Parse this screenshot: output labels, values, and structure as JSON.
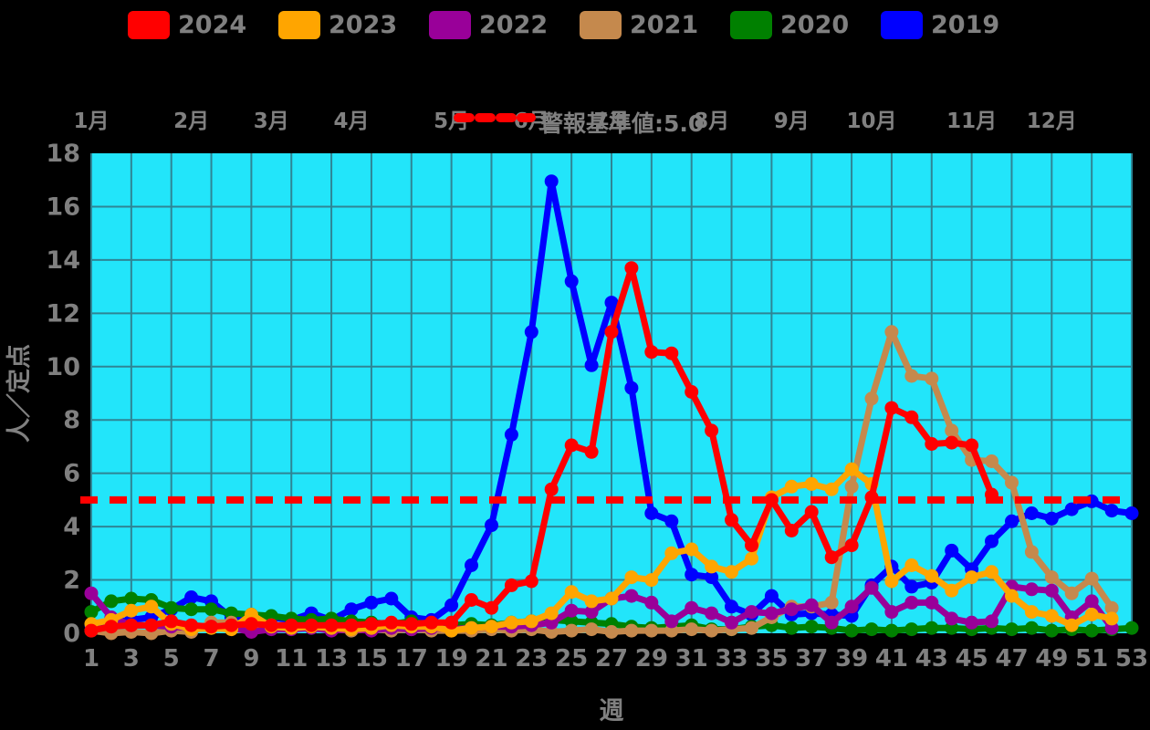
{
  "legend": {
    "items": [
      {
        "label": "2024",
        "color": "#ff0000"
      },
      {
        "label": "2023",
        "color": "#ffa500"
      },
      {
        "label": "2022",
        "color": "#990099"
      },
      {
        "label": "2021",
        "color": "#c5894d"
      },
      {
        "label": "2020",
        "color": "#008000"
      },
      {
        "label": "2019",
        "color": "#0000ff"
      }
    ]
  },
  "threshold": {
    "label": "警報基準値:5.0",
    "value": 5.0,
    "color": "#ff0000",
    "style": "dashed"
  },
  "chart_data": {
    "type": "line",
    "title": "",
    "xlabel": "週",
    "ylabel": "人／定点",
    "xlim": [
      1,
      53
    ],
    "ylim": [
      0,
      18
    ],
    "grid": true,
    "legend_position": "top",
    "plot_bg": "#22e5fa",
    "grid_color": "#2e8595",
    "tick_color": "#808080",
    "x_ticks": [
      1,
      3,
      5,
      7,
      9,
      11,
      13,
      15,
      17,
      19,
      21,
      23,
      25,
      27,
      29,
      31,
      33,
      35,
      37,
      39,
      41,
      43,
      45,
      47,
      49,
      51,
      53
    ],
    "y_ticks": [
      0,
      2,
      4,
      6,
      8,
      10,
      12,
      14,
      16,
      18
    ],
    "top_axis_month_labels": [
      {
        "label": "1月",
        "week": 1
      },
      {
        "label": "2月",
        "week": 6
      },
      {
        "label": "3月",
        "week": 10
      },
      {
        "label": "4月",
        "week": 14
      },
      {
        "label": "5月",
        "week": 19
      },
      {
        "label": "6月",
        "week": 23
      },
      {
        "label": "7月",
        "week": 27
      },
      {
        "label": "8月",
        "week": 32
      },
      {
        "label": "9月",
        "week": 36
      },
      {
        "label": "10月",
        "week": 40
      },
      {
        "label": "11月",
        "week": 45
      },
      {
        "label": "12月",
        "week": 49
      }
    ],
    "x_weeks": [
      1,
      2,
      3,
      4,
      5,
      6,
      7,
      8,
      9,
      10,
      11,
      12,
      13,
      14,
      15,
      16,
      17,
      18,
      19,
      20,
      21,
      22,
      23,
      24,
      25,
      26,
      27,
      28,
      29,
      30,
      31,
      32,
      33,
      34,
      35,
      36,
      37,
      38,
      39,
      40,
      41,
      42,
      43,
      44,
      45,
      46,
      47,
      48,
      49,
      50,
      51,
      52,
      53
    ],
    "threshold_line": {
      "value": 5.0,
      "color": "#ff0000",
      "style": "dashed"
    },
    "series": [
      {
        "name": "2024",
        "color": "#ff0000",
        "values": [
          0.1,
          0.25,
          0.3,
          0.3,
          0.45,
          0.3,
          0.25,
          0.3,
          0.35,
          0.3,
          0.3,
          0.3,
          0.3,
          0.3,
          0.35,
          0.4,
          0.35,
          0.4,
          0.4,
          1.25,
          0.95,
          1.8,
          1.95,
          5.4,
          7.05,
          6.8,
          11.3,
          13.7,
          10.55,
          10.5,
          9.05,
          7.6,
          4.25,
          3.3,
          5.0,
          3.85,
          4.55,
          2.85,
          3.3,
          5.1,
          8.45,
          8.1,
          7.1,
          7.15,
          7.05,
          5.2,
          null,
          null,
          null,
          null,
          null,
          null,
          null
        ]
      },
      {
        "name": "2023",
        "color": "#ffa500",
        "values": [
          0.35,
          0.5,
          0.85,
          1.0,
          0.35,
          0.15,
          0.2,
          0.15,
          0.7,
          0.25,
          0.2,
          0.25,
          0.2,
          0.15,
          0.2,
          0.3,
          0.25,
          0.25,
          0.1,
          0.2,
          0.25,
          0.4,
          0.45,
          0.75,
          1.55,
          1.2,
          1.3,
          2.1,
          2.0,
          3.0,
          3.15,
          2.5,
          2.3,
          2.8,
          5.1,
          5.5,
          5.6,
          5.4,
          6.15,
          5.6,
          1.95,
          2.55,
          2.15,
          1.6,
          2.1,
          2.3,
          1.4,
          0.8,
          0.65,
          0.3,
          0.7,
          0.55,
          null
        ]
      },
      {
        "name": "2022",
        "color": "#990099",
        "values": [
          1.5,
          0.6,
          0.3,
          0.3,
          0.25,
          0.2,
          0.25,
          0.2,
          0.05,
          0.15,
          0.15,
          0.2,
          0.1,
          0.15,
          0.1,
          0.2,
          0.15,
          0.2,
          0.15,
          0.2,
          0.25,
          0.25,
          0.3,
          0.4,
          0.85,
          0.8,
          1.3,
          1.4,
          1.15,
          0.45,
          0.95,
          0.75,
          0.4,
          0.8,
          0.75,
          0.9,
          1.05,
          0.4,
          1.0,
          1.7,
          0.8,
          1.15,
          1.15,
          0.55,
          0.4,
          0.45,
          1.75,
          1.65,
          1.6,
          0.6,
          1.2,
          0.2,
          null
        ]
      },
      {
        "name": "2021",
        "color": "#c5894d",
        "values": [
          0.1,
          0.0,
          0.05,
          0.0,
          0.1,
          0.05,
          0.4,
          0.4,
          0.25,
          0.3,
          0.2,
          0.25,
          0.15,
          0.1,
          0.15,
          0.1,
          0.15,
          0.1,
          0.1,
          0.1,
          0.15,
          0.1,
          0.15,
          0.05,
          0.1,
          0.15,
          0.05,
          0.1,
          0.1,
          0.1,
          0.15,
          0.1,
          0.15,
          0.2,
          0.6,
          1.0,
          1.0,
          1.15,
          5.5,
          8.8,
          11.3,
          9.65,
          9.55,
          7.6,
          6.5,
          6.45,
          5.65,
          3.05,
          2.1,
          1.5,
          2.05,
          0.95,
          null
        ]
      },
      {
        "name": "2020",
        "color": "#008000",
        "values": [
          0.8,
          1.2,
          1.3,
          1.25,
          0.95,
          0.9,
          0.9,
          0.75,
          0.7,
          0.65,
          0.55,
          0.5,
          0.55,
          0.45,
          0.4,
          0.35,
          0.45,
          0.3,
          0.3,
          0.35,
          0.3,
          0.4,
          0.45,
          0.5,
          0.45,
          0.4,
          0.35,
          0.25,
          0.2,
          0.25,
          0.3,
          0.15,
          0.15,
          0.25,
          0.3,
          0.2,
          0.25,
          0.2,
          0.1,
          0.15,
          0.1,
          0.15,
          0.2,
          0.2,
          0.15,
          0.2,
          0.15,
          0.2,
          0.1,
          0.15,
          0.1,
          0.15,
          0.2
        ]
      },
      {
        "name": "2019",
        "color": "#0000ff",
        "values": [
          0.3,
          0.4,
          0.5,
          0.6,
          0.9,
          1.35,
          1.2,
          0.6,
          0.5,
          0.6,
          0.5,
          0.75,
          0.5,
          0.9,
          1.15,
          1.3,
          0.6,
          0.5,
          1.05,
          2.55,
          4.05,
          7.45,
          11.3,
          16.95,
          13.2,
          10.05,
          12.4,
          9.2,
          4.5,
          4.2,
          2.2,
          2.1,
          1.0,
          0.7,
          1.4,
          0.7,
          0.75,
          0.7,
          0.65,
          1.8,
          2.5,
          1.75,
          1.9,
          3.1,
          2.4,
          3.45,
          4.2,
          4.5,
          4.3,
          4.65,
          4.95,
          4.6,
          4.5
        ]
      }
    ]
  }
}
